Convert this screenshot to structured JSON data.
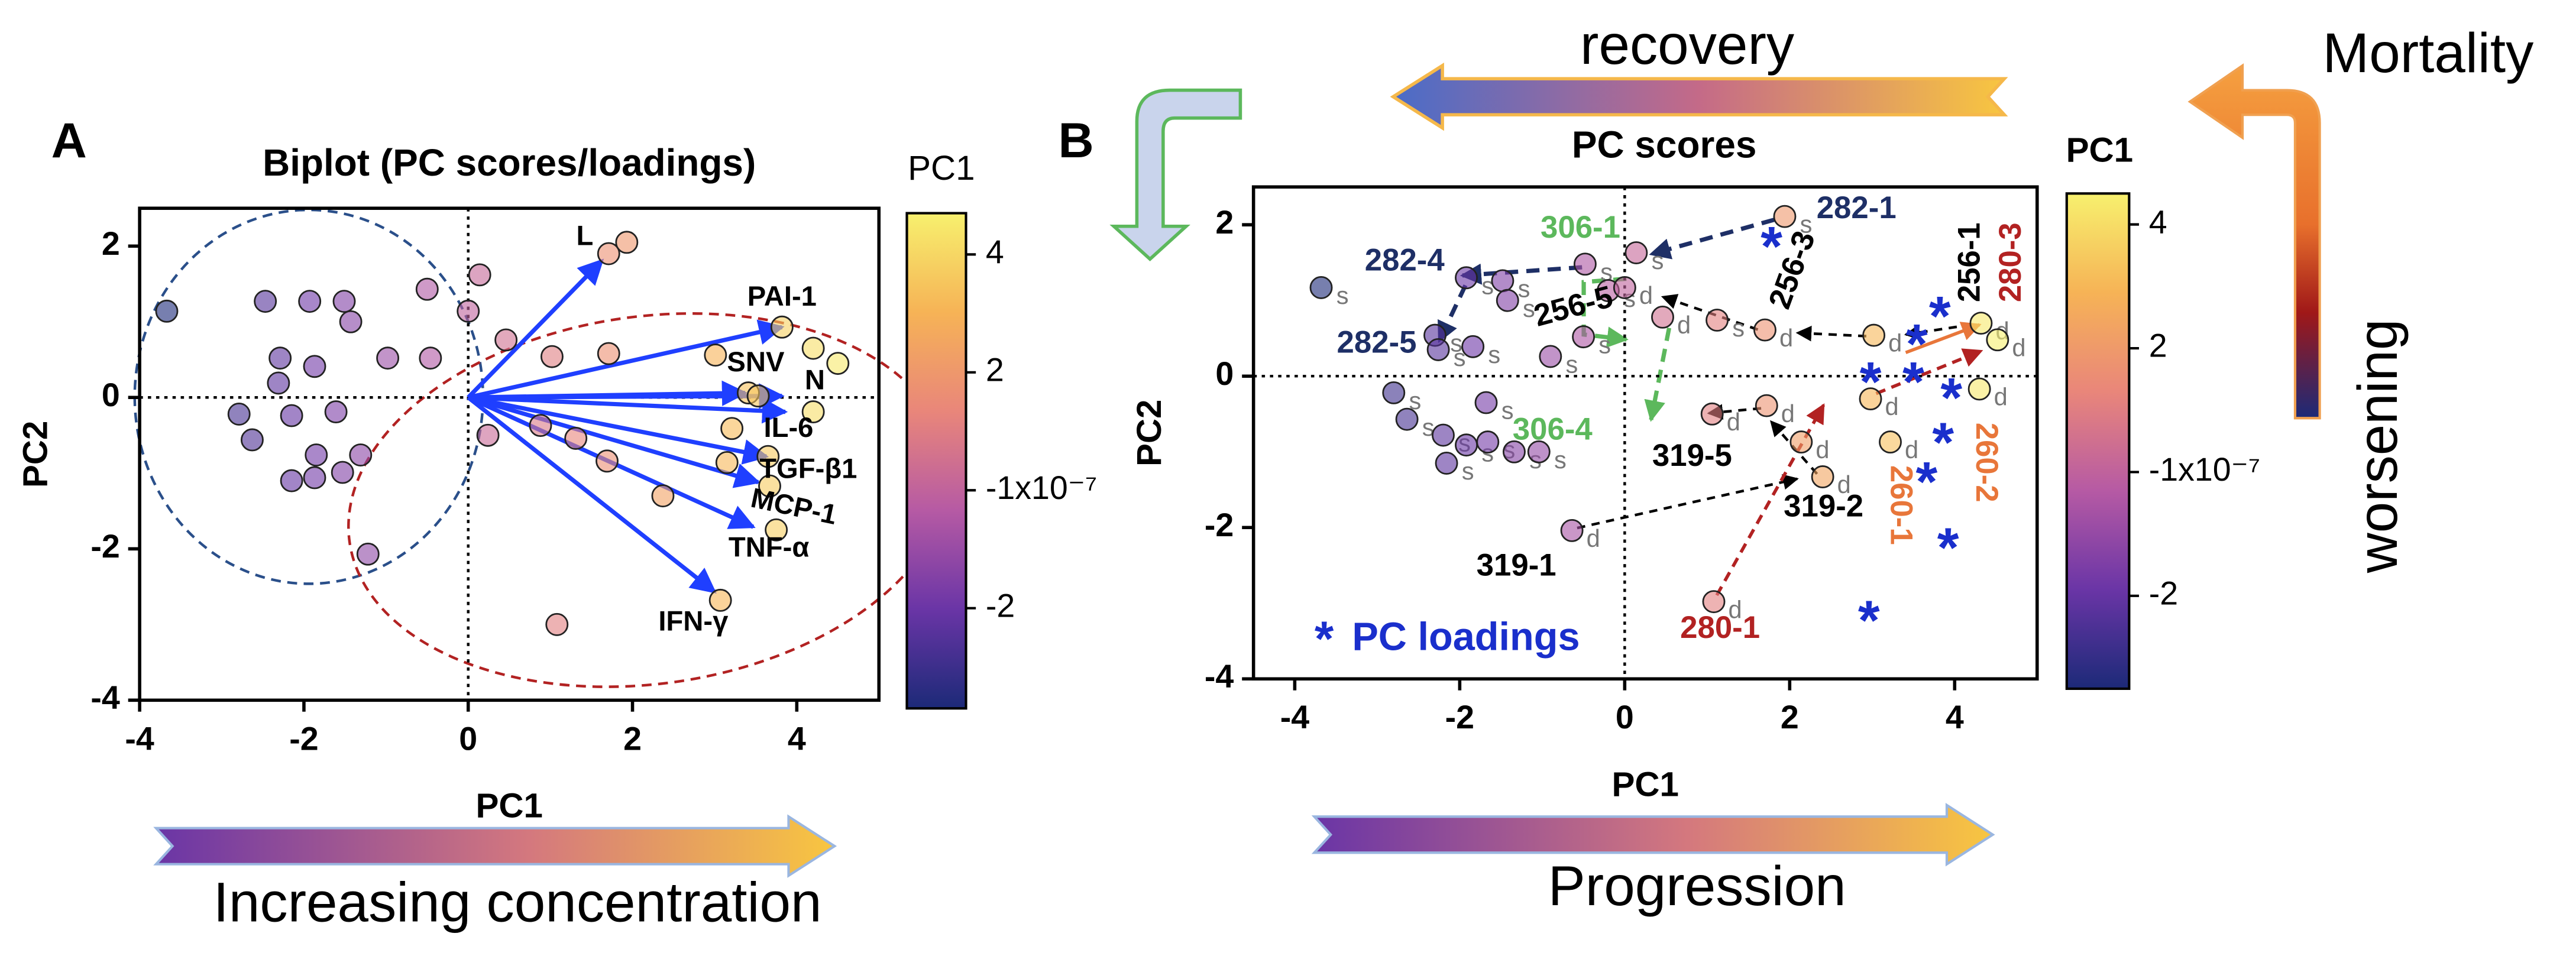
{
  "chart_data": [
    {
      "type": "scatter",
      "panel": "A",
      "title": "Biplot (PC scores/loadings)",
      "x_label": "PC1",
      "y_label": "PC2",
      "xlim": [
        -4,
        5
      ],
      "ylim": [
        -4,
        2.5
      ],
      "xticks": [
        -4,
        -2,
        0,
        2,
        4
      ],
      "yticks": [
        -4,
        -2,
        0,
        2
      ],
      "x": [
        -3.67,
        -2.47,
        -1.93,
        -1.51,
        -1.43,
        -2.29,
        -1.87,
        -0.98,
        -0.46,
        -0.5,
        0,
        0.14,
        -2.31,
        -2.79,
        -2.15,
        -1.61,
        -2.63,
        -1.85,
        -1.31,
        -2.15,
        -1.87,
        -1.53,
        -1.22,
        0.24,
        0.46,
        1.02,
        1.71,
        1.71,
        1.93,
        1.08,
        0.88,
        1.31,
        1.69,
        2.37,
        3.01,
        3.41,
        3.21,
        3.82,
        4.2,
        4.5,
        3.53,
        4.2,
        3.65,
        3.15,
        3.67,
        3.75,
        3.07
      ],
      "y": [
        1.14,
        1.27,
        1.27,
        1.27,
        1.0,
        0.52,
        0.41,
        0.52,
        0.52,
        1.43,
        1.14,
        1.62,
        0.19,
        -0.22,
        -0.24,
        -0.19,
        -0.56,
        -0.76,
        -0.76,
        -1.1,
        -1.06,
        -0.99,
        -2.07,
        -0.5,
        0.76,
        0.54,
        0.58,
        1.9,
        2.05,
        -3.0,
        -0.37,
        -0.54,
        -0.84,
        -1.3,
        0.56,
        0.06,
        -0.41,
        0.93,
        0.65,
        0.45,
        0.02,
        -0.19,
        -0.78,
        -0.86,
        -1.17,
        -1.75,
        -2.68
      ],
      "colorbar": {
        "title": "PC1",
        "lim": [
          -3.7,
          4.7
        ],
        "ticks": [
          4,
          2,
          {
            "value": -1e-07,
            "label": "-1x10⁻⁷"
          },
          -2
        ],
        "colormap": [
          "#1c2a78",
          "#6a35a6",
          "#b65aa4",
          "#e9867a",
          "#f6b356",
          "#f7f06e"
        ]
      },
      "loadings": {
        "color": "#1f3fff",
        "names": [
          "L",
          "PAI-1",
          "SNV",
          "N",
          "IL-6",
          "TGF-β1",
          "MCP-1",
          "TNF-α",
          "IFN-γ"
        ],
        "x": [
          1.63,
          3.82,
          3.37,
          3.82,
          3.86,
          3.63,
          3.53,
          3.47,
          3.0
        ],
        "y": [
          1.81,
          0.93,
          0.06,
          0.02,
          -0.19,
          -0.78,
          -1.12,
          -1.71,
          -2.57
        ]
      }
    },
    {
      "type": "scatter",
      "panel": "B",
      "title": "PC scores",
      "x_label": "PC1",
      "y_label": "PC2",
      "xlim": [
        -4.5,
        5
      ],
      "ylim": [
        -4,
        2.5
      ],
      "xticks": [
        -4,
        -2,
        0,
        2,
        4
      ],
      "yticks": [
        -4,
        -2,
        0,
        2
      ],
      "x": [
        -3.68,
        -2.8,
        -2.64,
        -2.3,
        -2.26,
        -1.84,
        -1.92,
        -1.48,
        -1.42,
        -0.9,
        -0.5,
        -0.48,
        -0.2,
        0.14,
        0,
        0.46,
        1.12,
        1.7,
        3.02,
        4.32,
        4.52,
        1.94,
        2.98,
        4.3,
        3.22,
        2.14,
        1.72,
        2.4,
        1.06,
        -1.68,
        -2.2,
        -1.92,
        -2.16,
        -1.66,
        -1.34,
        -1.04,
        1.08,
        -0.64
      ],
      "y": [
        1.17,
        -0.22,
        -0.57,
        0.54,
        0.35,
        0.39,
        1.3,
        1.26,
        1.0,
        0.26,
        0.52,
        1.48,
        1.13,
        1.63,
        1.17,
        0.78,
        0.74,
        0.61,
        0.54,
        0.7,
        0.48,
        2.11,
        -0.3,
        -0.17,
        -0.87,
        -0.87,
        -0.39,
        -1.33,
        -0.5,
        -0.35,
        -0.78,
        -0.91,
        -1.15,
        -0.87,
        -1.0,
        -1.0,
        -2.98,
        -2.04
      ],
      "markers": [
        "s",
        "s",
        "s",
        "s",
        "s",
        "s",
        "s",
        "s",
        "s",
        "s",
        "s",
        "s",
        "s",
        "s",
        "d",
        "d",
        "s",
        "d",
        "d",
        "d",
        "d",
        "s",
        "d",
        "d",
        "d",
        "d",
        "d",
        "d",
        "d",
        "s",
        "s",
        "s",
        "s",
        "s",
        "s",
        "s",
        "d",
        "d"
      ],
      "colorbar": {
        "title": "PC1",
        "lim": [
          -3.5,
          4.5
        ],
        "ticks": [
          4,
          2,
          {
            "value": -1e-07,
            "label": "-1x10⁻⁷"
          },
          -2
        ],
        "colormap": [
          "#1c2a78",
          "#6a35a6",
          "#b65aa4",
          "#e9867a",
          "#f6b356",
          "#f7f06e"
        ]
      },
      "loadings": {
        "color": "#1a2fcc",
        "symbol": "*",
        "label": "PC loadings",
        "x": [
          1.78,
          3.82,
          3.54,
          2.98,
          3.5,
          3.96,
          3.86,
          3.66,
          3.92,
          2.96
        ],
        "y": [
          1.83,
          0.91,
          0.54,
          0.04,
          0.04,
          -0.17,
          -0.76,
          -1.28,
          -2.15,
          -3.11
        ]
      },
      "annotations": [
        {
          "text": "282-1",
          "color": "#1e2f66"
        },
        {
          "text": "282-4",
          "color": "#1e2f66"
        },
        {
          "text": "282-5",
          "color": "#1e2f66"
        },
        {
          "text": "256-3",
          "color": "#000000"
        },
        {
          "text": "256-5",
          "color": "#000000"
        },
        {
          "text": "256-1",
          "color": "#000000"
        },
        {
          "text": "280-3",
          "color": "#b22222"
        },
        {
          "text": "306-1",
          "color": "#5cb85c"
        },
        {
          "text": "306-4",
          "color": "#5cb85c"
        },
        {
          "text": "319-5",
          "color": "#000000"
        },
        {
          "text": "319-2",
          "color": "#000000"
        },
        {
          "text": "319-1",
          "color": "#000000"
        },
        {
          "text": "280-1",
          "color": "#b22222"
        },
        {
          "text": "260-1",
          "color": "#e8763a"
        },
        {
          "text": "260-2",
          "color": "#e8763a"
        }
      ]
    }
  ],
  "figure": {
    "captions": [
      "Increasing concentration",
      "Progression",
      "recovery",
      "Mortality",
      "worsening"
    ]
  }
}
